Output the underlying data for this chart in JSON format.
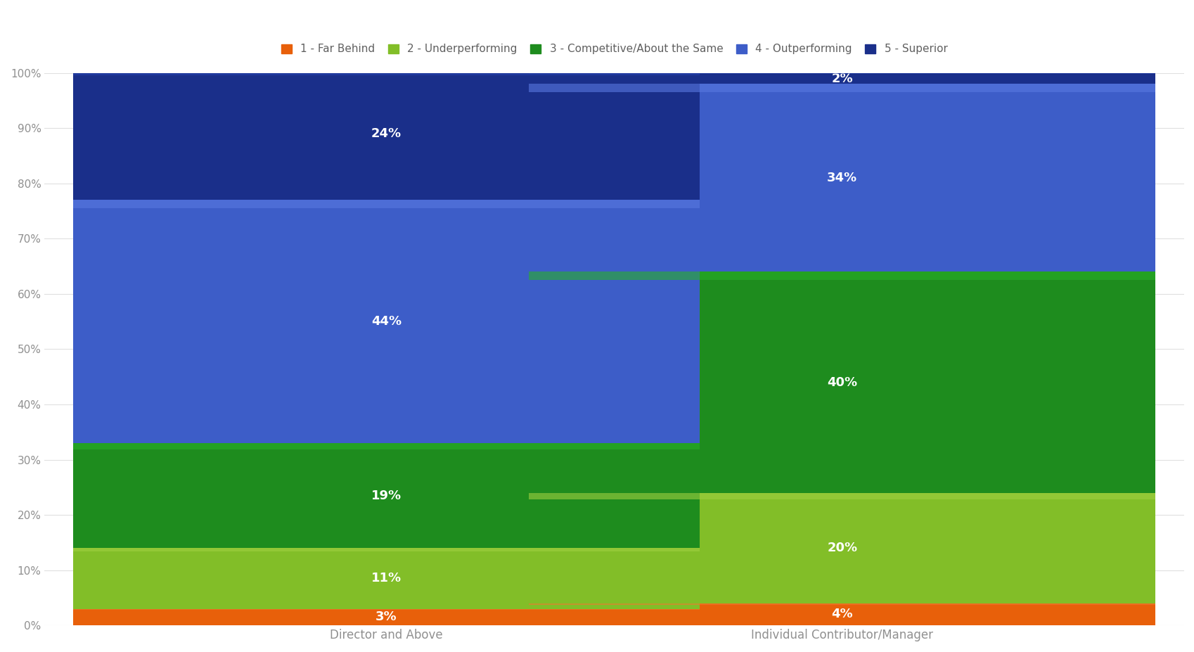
{
  "categories": [
    "Director and Above",
    "Individual Contributor/Manager"
  ],
  "series": [
    {
      "label": "1 - Far Behind",
      "values": [
        3,
        4
      ],
      "color": "#E8600A",
      "light_color": "#F07830"
    },
    {
      "label": "2 - Underperforming",
      "values": [
        11,
        20
      ],
      "color": "#82BE28",
      "light_color": "#A0D040"
    },
    {
      "label": "3 - Competitive/About the Same",
      "values": [
        19,
        40
      ],
      "color": "#1E8C1E",
      "light_color": "#28B028"
    },
    {
      "label": "4 - Outperforming",
      "values": [
        44,
        34
      ],
      "color": "#3D5DC8",
      "light_color": "#5878E0"
    },
    {
      "label": "5 - Superior",
      "values": [
        24,
        2
      ],
      "color": "#1A2F8A",
      "light_color": "#2540AA"
    }
  ],
  "ylim": [
    0,
    100
  ],
  "yticks": [
    0,
    10,
    20,
    30,
    40,
    50,
    60,
    70,
    80,
    90,
    100
  ],
  "ytick_labels": [
    "0%",
    "10%",
    "20%",
    "30%",
    "40%",
    "50%",
    "60%",
    "70%",
    "80%",
    "90%",
    "100%"
  ],
  "background_color": "#FFFFFF",
  "grid_color": "#E0E0E0",
  "bar_width": 0.55,
  "bar_positions": [
    0.3,
    0.7
  ],
  "xlim": [
    0.0,
    1.0
  ],
  "legend_fontsize": 11,
  "tick_fontsize": 11,
  "label_fontsize": 12,
  "value_fontsize": 13
}
